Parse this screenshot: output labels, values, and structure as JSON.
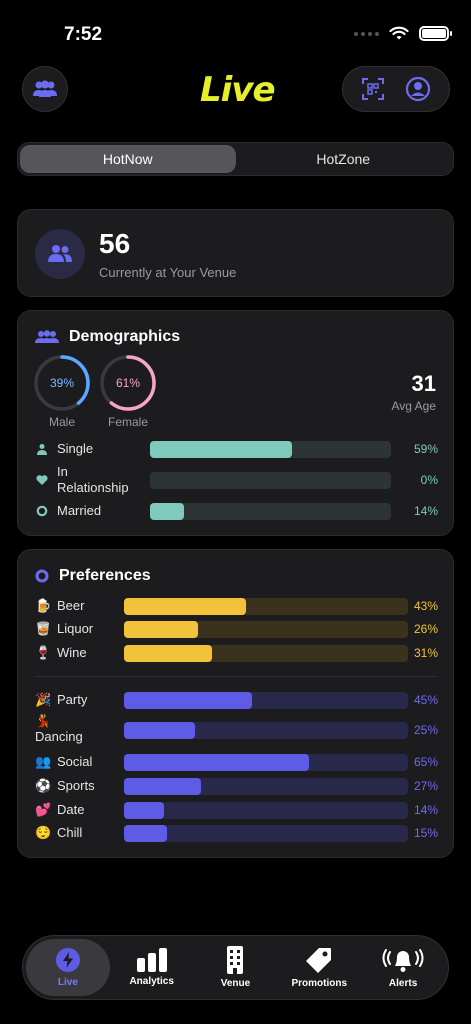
{
  "status": {
    "time": "7:52"
  },
  "header": {
    "logo": "Live",
    "group_icon": "group-icon",
    "qr_icon": "qr-scan-icon",
    "profile_icon": "profile-icon"
  },
  "segments": [
    {
      "label": "HotNow",
      "active": true
    },
    {
      "label": "HotZone",
      "active": false
    }
  ],
  "venue": {
    "count": "56",
    "label": "Currently at Your Venue"
  },
  "demographics": {
    "title": "Demographics",
    "male": {
      "percent": "39%",
      "value": 0.39,
      "label": "Male",
      "color": "#5aa8ff"
    },
    "female": {
      "percent": "61%",
      "value": 0.61,
      "label": "Female",
      "color": "#f5a6c8"
    },
    "avg_age": {
      "value": "31",
      "label": "Avg Age"
    },
    "relationship": [
      {
        "label": "Single",
        "percent": "59%",
        "value": 0.59,
        "icon": "person-icon"
      },
      {
        "label": "In Relationship",
        "percent": "0%",
        "value": 0.0,
        "icon": "heart-icon"
      },
      {
        "label": "Married",
        "percent": "14%",
        "value": 0.14,
        "icon": "ring-icon"
      }
    ]
  },
  "preferences": {
    "title": "Preferences",
    "drinks": [
      {
        "emoji": "🍺",
        "label": "Beer",
        "percent": "43%",
        "value": 0.43
      },
      {
        "emoji": "🥃",
        "label": "Liquor",
        "percent": "26%",
        "value": 0.26
      },
      {
        "emoji": "🍷",
        "label": "Wine",
        "percent": "31%",
        "value": 0.31
      }
    ],
    "vibes": [
      {
        "emoji": "🎉",
        "label": "Party",
        "percent": "45%",
        "value": 0.45
      },
      {
        "emoji": "💃",
        "label": "Dancing",
        "percent": "25%",
        "value": 0.25
      },
      {
        "emoji": "👥",
        "label": "Social",
        "percent": "65%",
        "value": 0.65
      },
      {
        "emoji": "⚽",
        "label": "Sports",
        "percent": "27%",
        "value": 0.27
      },
      {
        "emoji": "💕",
        "label": "Date",
        "percent": "14%",
        "value": 0.14
      },
      {
        "emoji": "😌",
        "label": "Chill",
        "percent": "15%",
        "value": 0.15
      }
    ]
  },
  "tabs": [
    {
      "label": "Live",
      "icon": "bolt-icon",
      "active": true
    },
    {
      "label": "Analytics",
      "icon": "bar-chart-icon",
      "active": false
    },
    {
      "label": "Venue",
      "icon": "building-icon",
      "active": false
    },
    {
      "label": "Promotions",
      "icon": "tag-icon",
      "active": false
    },
    {
      "label": "Alerts",
      "icon": "bell-icon",
      "active": false
    }
  ],
  "colors": {
    "accent": "#5e5ce6",
    "logo": "#e6f028",
    "teal": "#7fc9bd",
    "gold": "#f2c23a"
  }
}
